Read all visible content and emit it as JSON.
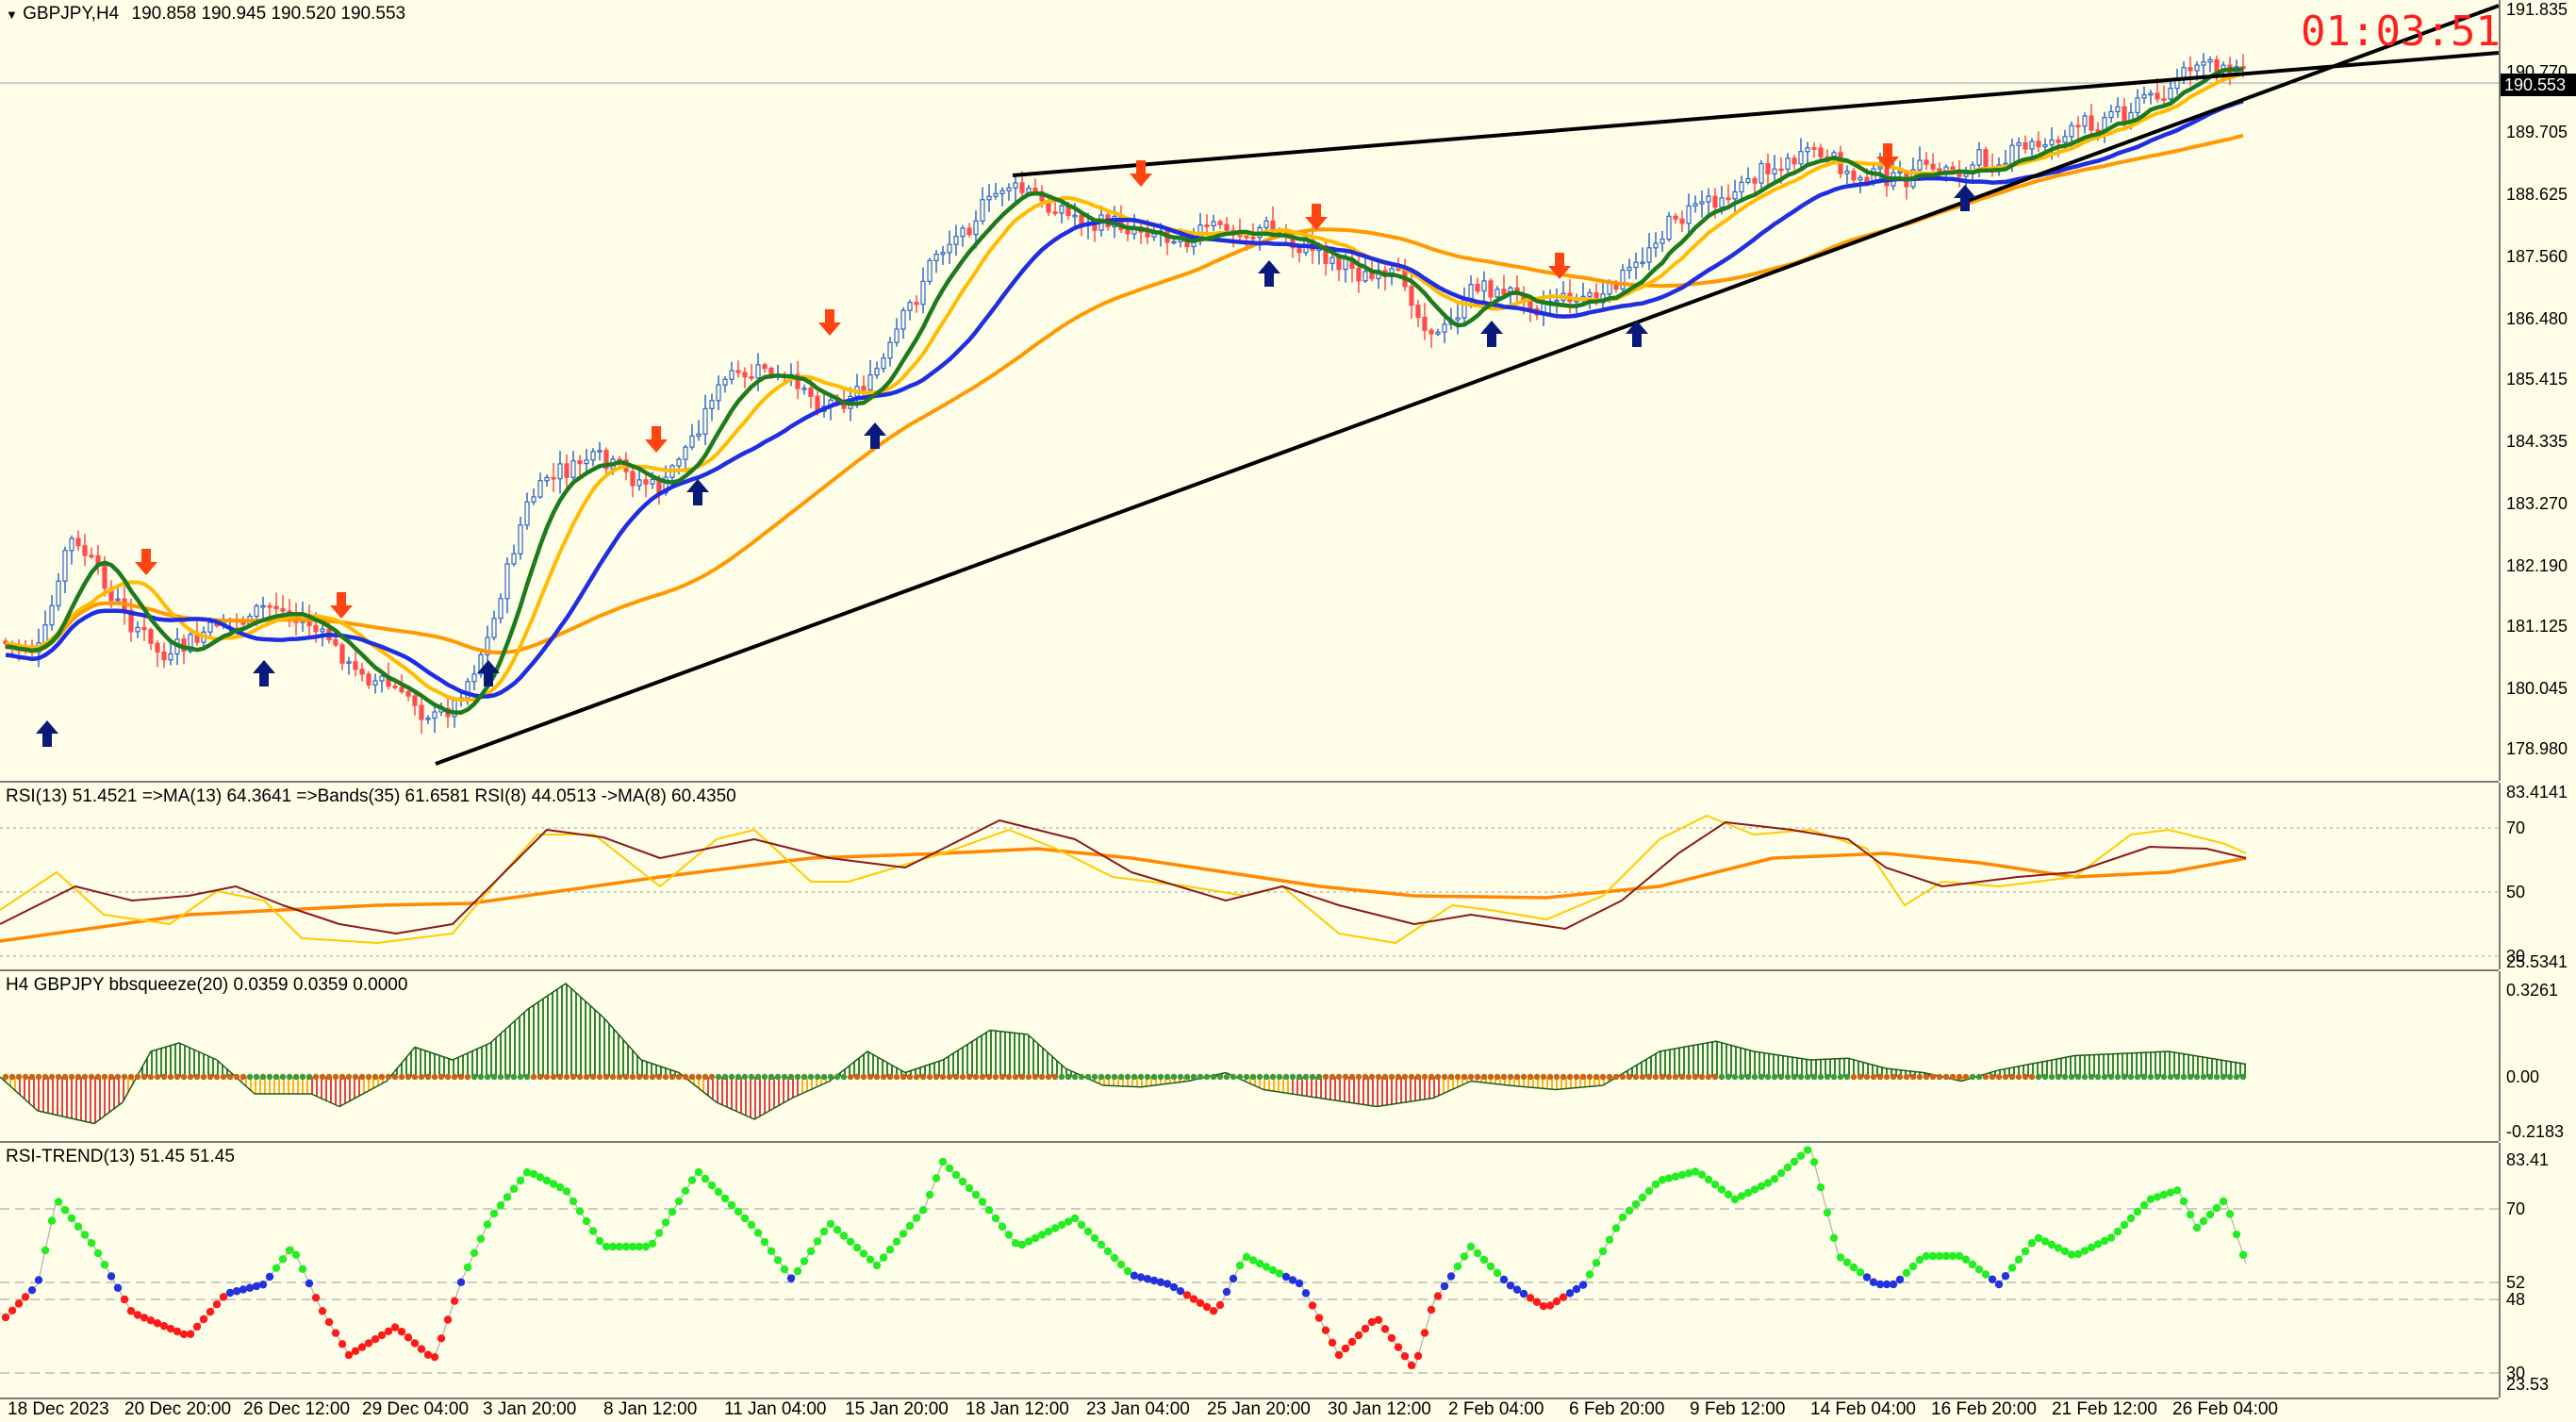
{
  "main": {
    "symbol_label": "GBPJPY,H4",
    "ohlc": "190.858 190.945 190.520 190.553",
    "timer": "01:03:51",
    "current_price": "190.553",
    "price_ticks": [
      "191.835",
      "190.770",
      "189.705",
      "188.625",
      "187.560",
      "186.480",
      "185.415",
      "184.335",
      "183.270",
      "182.190",
      "181.125",
      "180.045",
      "178.980"
    ],
    "colors": {
      "up_candle": "#3366cc",
      "down_candle": "#ff4d4d",
      "fast_ma": "#1e7a1e",
      "slow_ma": "#1f2ee0",
      "signal_ma": "#ffbb00",
      "long_ma": "#ff9900",
      "buy_arrow": "#0a1a7a",
      "sell_arrow": "#ff4411",
      "trendline": "#000000"
    }
  },
  "rsi_pane": {
    "label": "RSI(13) 51.4521  =>MA(13) 64.3641  =>Bands(35) 61.6581  RSI(8) 44.0513  ->MA(8) 60.4350",
    "ticks": [
      "83.4141",
      "70",
      "50",
      "30",
      "25.5341"
    ]
  },
  "squeeze_pane": {
    "label": "H4 GBPJPY bbsqueeze(20) 0.0359 0.0359 0.0000",
    "ticks": [
      "0.3261",
      "0.00",
      "-0.2183"
    ]
  },
  "trend_pane": {
    "label": "RSI-TREND(13) 51.45 51.45",
    "ticks": [
      "83.41",
      "70",
      "52",
      "48",
      "30",
      "23.53"
    ]
  },
  "time_axis": [
    "18 Dec 2023",
    "20 Dec 20:00",
    "26 Dec 12:00",
    "29 Dec 04:00",
    "3 Jan 20:00",
    "8 Jan 12:00",
    "11 Jan 04:00",
    "15 Jan 20:00",
    "18 Jan 12:00",
    "23 Jan 04:00",
    "25 Jan 20:00",
    "30 Jan 12:00",
    "2 Feb 04:00",
    "6 Feb 20:00",
    "9 Feb 12:00",
    "14 Feb 04:00",
    "16 Feb 20:00",
    "21 Feb 12:00",
    "26 Feb 04:00"
  ]
}
